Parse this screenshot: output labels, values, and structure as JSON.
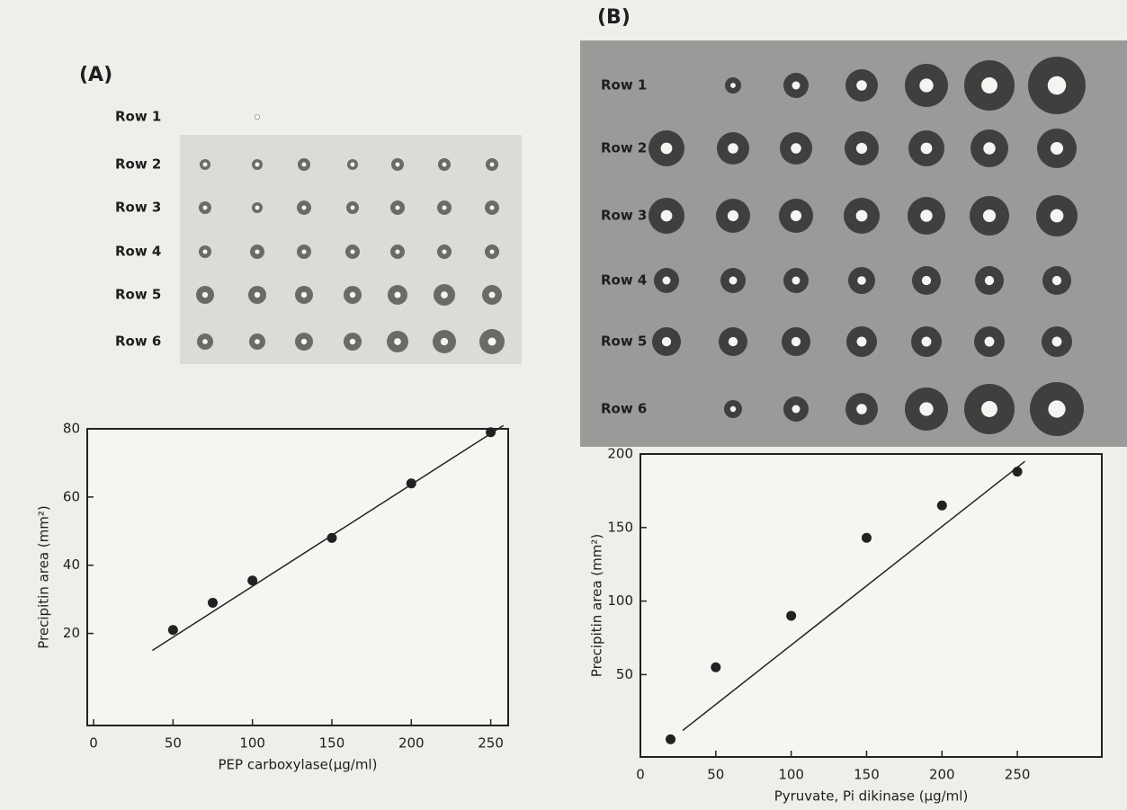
{
  "panels": [
    {
      "label": "(A)",
      "rows": [
        "Row 1",
        "Row 2",
        "Row 3",
        "Row 4",
        "Row 5",
        "Row 6"
      ]
    },
    {
      "label": "(B)",
      "rows": [
        "Row 1",
        "Row 2",
        "Row 3",
        "Row 4",
        "Row 5",
        "Row 6"
      ]
    }
  ],
  "chart_data": [
    {
      "type": "scatter",
      "x_label": "PEP carboxylase(µg/ml)",
      "y_label": "Precipitin area  (mm²)",
      "x": [
        50,
        75,
        100,
        150,
        200,
        250
      ],
      "values": [
        21,
        29,
        35.5,
        48,
        64,
        79
      ],
      "fit": {
        "x": [
          37,
          258
        ],
        "y": [
          15,
          81
        ]
      },
      "xlim": [
        -4,
        261
      ],
      "ylim": [
        -7,
        80
      ],
      "xticks": [
        0,
        50,
        100,
        150,
        200,
        250
      ],
      "yticks": [
        20,
        40,
        60,
        80
      ],
      "color": "#222"
    },
    {
      "type": "scatter",
      "x_label": "Pyruvate, Pi dikinase  (µg/ml)",
      "y_label": "Precipitin area  (mm²)",
      "x": [
        20,
        50,
        100,
        150,
        200,
        250
      ],
      "values": [
        6,
        55,
        90,
        143,
        165,
        188
      ],
      "fit": {
        "x": [
          28,
          255
        ],
        "y": [
          12,
          195
        ]
      },
      "xlim": [
        0,
        306
      ],
      "ylim": [
        -6,
        200
      ],
      "xticks": [
        0,
        50,
        100,
        150,
        200,
        250
      ],
      "yticks": [
        50,
        100,
        150,
        200
      ],
      "color": "#222"
    }
  ]
}
